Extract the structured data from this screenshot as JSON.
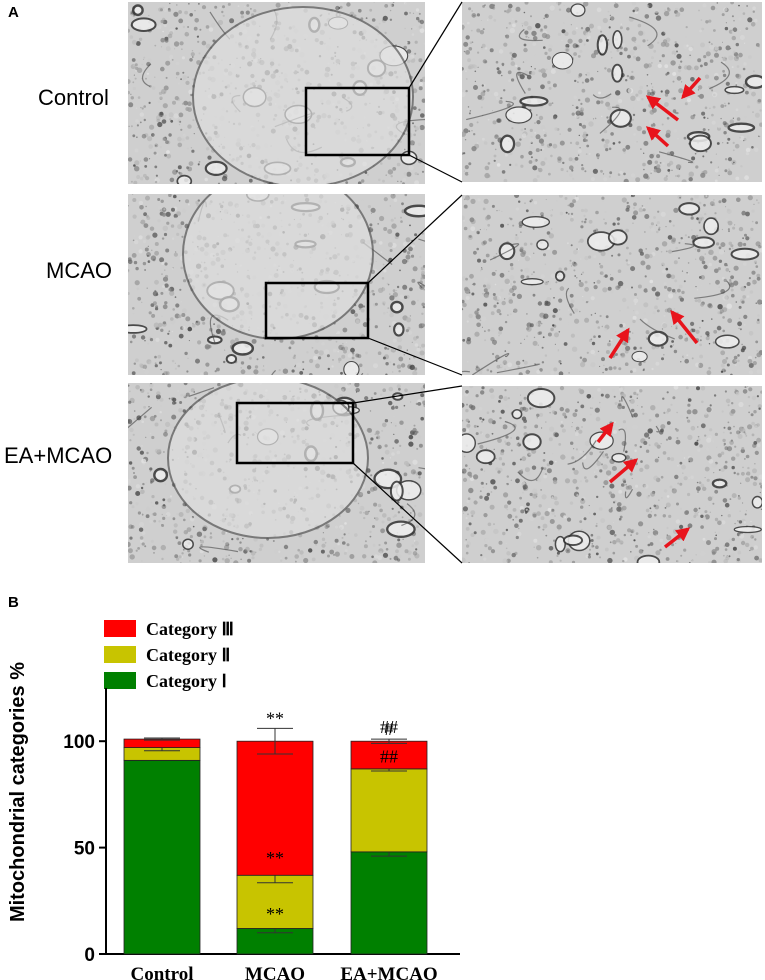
{
  "panel_a": {
    "letter": "A",
    "rows": [
      {
        "label": "Control"
      },
      {
        "label": "MCAO"
      },
      {
        "label": "EA+MCAO"
      }
    ]
  },
  "panel_b": {
    "letter": "B"
  },
  "colors": {
    "category_I": "#008000",
    "category_II": "#c8c400",
    "category_III": "#ff0000",
    "arrow": "#e8141c"
  },
  "chart_data": {
    "type": "bar",
    "stacked": true,
    "categories": [
      "Control",
      "MCAO",
      "EA+MCAO"
    ],
    "ylabel": "Mitochondrial categories %",
    "xlabel": "",
    "ylim": [
      0,
      125
    ],
    "yticks": [
      0,
      50,
      100
    ],
    "legend_position": "top-left",
    "series": [
      {
        "name": "Category Ⅰ",
        "values": [
          91,
          12,
          48
        ],
        "errors": [
          0,
          2,
          2
        ]
      },
      {
        "name": "Category Ⅱ",
        "values": [
          6,
          25,
          39
        ],
        "errors": [
          1.5,
          3.5,
          1
        ]
      },
      {
        "name": "Category Ⅲ",
        "values": [
          4,
          63,
          13
        ],
        "errors": [
          0.5,
          6,
          1
        ]
      }
    ],
    "annotations": [
      {
        "category": "MCAO",
        "series": "Category Ⅰ",
        "text": "**"
      },
      {
        "category": "MCAO",
        "series": "Category Ⅱ",
        "text": "**"
      },
      {
        "category": "MCAO",
        "series": "Category Ⅲ",
        "text": "**"
      },
      {
        "category": "EA+MCAO",
        "series": "Category Ⅱ",
        "text": "##"
      },
      {
        "category": "EA+MCAO",
        "series": "Category Ⅲ",
        "text": "#"
      },
      {
        "category": "EA+MCAO",
        "series": "Category Ⅲ",
        "text": "##",
        "above": true
      }
    ]
  }
}
